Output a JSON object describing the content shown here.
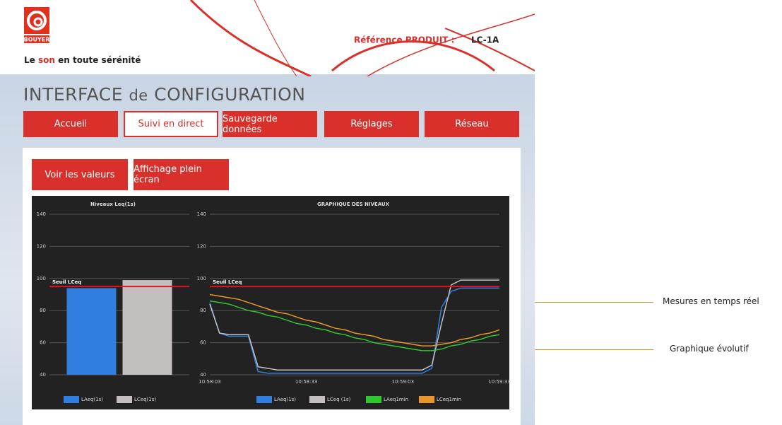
{
  "header": {
    "brand": "BOUYER",
    "tagline_start": "Le",
    "tagline_highlight": "son",
    "tagline_end": "en toute sérénité",
    "reference_label": "Référence PRODUIT :",
    "reference_value": "LC-1A"
  },
  "title_start": "INTERFACE",
  "title_mid": "de",
  "title_end": "CONFIGURATION",
  "nav": [
    "Accueil",
    "Suivi en direct",
    "Sauvegarde données",
    "Réglages",
    "Réseau"
  ],
  "buttons": [
    "Voir les valeurs",
    "Affichage plein écran"
  ],
  "annotations": [
    "Mesures en temps réel",
    "Graphique évolutif"
  ],
  "chart_data": [
    {
      "type": "bar",
      "title": "Niveaux Leq(1s)",
      "categories": [
        null
      ],
      "series": [
        {
          "name": "LAeq(1s)",
          "color": "#2f7ee0",
          "values": [
            94
          ]
        },
        {
          "name": "LCeq(1s)",
          "color": "#c4bfbf",
          "values": [
            99
          ]
        }
      ],
      "ylim": [
        40,
        140
      ],
      "yticks": [
        40,
        60,
        80,
        100,
        120,
        140
      ],
      "grid": true,
      "threshold": {
        "label": "Seuil LCeq",
        "value": 95,
        "color": "#e0141e"
      }
    },
    {
      "type": "line",
      "title": "GRAPHIQUE DES NIVEAUX",
      "x": [
        "10:58:03",
        "10:58:06",
        "10:58:09",
        "10:58:12",
        "10:58:15",
        "10:58:18",
        "10:58:21",
        "10:58:24",
        "10:58:27",
        "10:58:30",
        "10:58:33",
        "10:58:36",
        "10:58:39",
        "10:58:42",
        "10:58:45",
        "10:58:48",
        "10:58:51",
        "10:58:54",
        "10:58:57",
        "10:59:00",
        "10:59:03",
        "10:59:06",
        "10:59:09",
        "10:59:12",
        "10:59:15",
        "10:59:18",
        "10:59:21",
        "10:59:24",
        "10:59:27",
        "10:59:30",
        "10:59:33"
      ],
      "xlim": [
        "10:58:03",
        "10:59:33"
      ],
      "xticks": [
        "10:58:03",
        "10:58:33",
        "10:59:03",
        "10:59:33"
      ],
      "ylim": [
        40,
        140
      ],
      "yticks": [
        40,
        60,
        80,
        100,
        120,
        140
      ],
      "grid": true,
      "threshold": {
        "label": "Seuil LCeq",
        "value": 95,
        "color": "#e0141e"
      },
      "series": [
        {
          "name": "LAeq(1s)",
          "color": "#2f7ee0",
          "values": [
            85,
            66,
            64,
            64,
            64,
            42,
            41,
            41,
            41,
            41,
            41,
            41,
            41,
            41,
            41,
            41,
            41,
            41,
            41,
            41,
            41,
            41,
            41,
            44,
            82,
            92,
            94,
            94,
            94,
            94,
            94
          ]
        },
        {
          "name": "LCeq (1s)",
          "color": "#c4bfbf",
          "values": [
            84,
            66,
            65,
            65,
            65,
            45,
            44,
            43,
            43,
            43,
            43,
            43,
            43,
            43,
            43,
            43,
            43,
            43,
            43,
            43,
            43,
            43,
            43,
            46,
            72,
            96,
            99,
            99,
            99,
            99,
            99
          ]
        },
        {
          "name": "LAeq1min",
          "color": "#2fc62f",
          "values": [
            86,
            85,
            84,
            82,
            80,
            79,
            77,
            76,
            74,
            72,
            71,
            69,
            68,
            66,
            65,
            63,
            62,
            60,
            59,
            58,
            57,
            56,
            55,
            55,
            56,
            58,
            59,
            61,
            62,
            64,
            65
          ]
        },
        {
          "name": "LCeq1min",
          "color": "#e8962a",
          "values": [
            90,
            89,
            88,
            87,
            85,
            83,
            81,
            79,
            78,
            76,
            74,
            73,
            71,
            69,
            68,
            66,
            65,
            64,
            62,
            61,
            60,
            59,
            58,
            58,
            59,
            60,
            62,
            63,
            65,
            66,
            68
          ]
        }
      ]
    }
  ]
}
